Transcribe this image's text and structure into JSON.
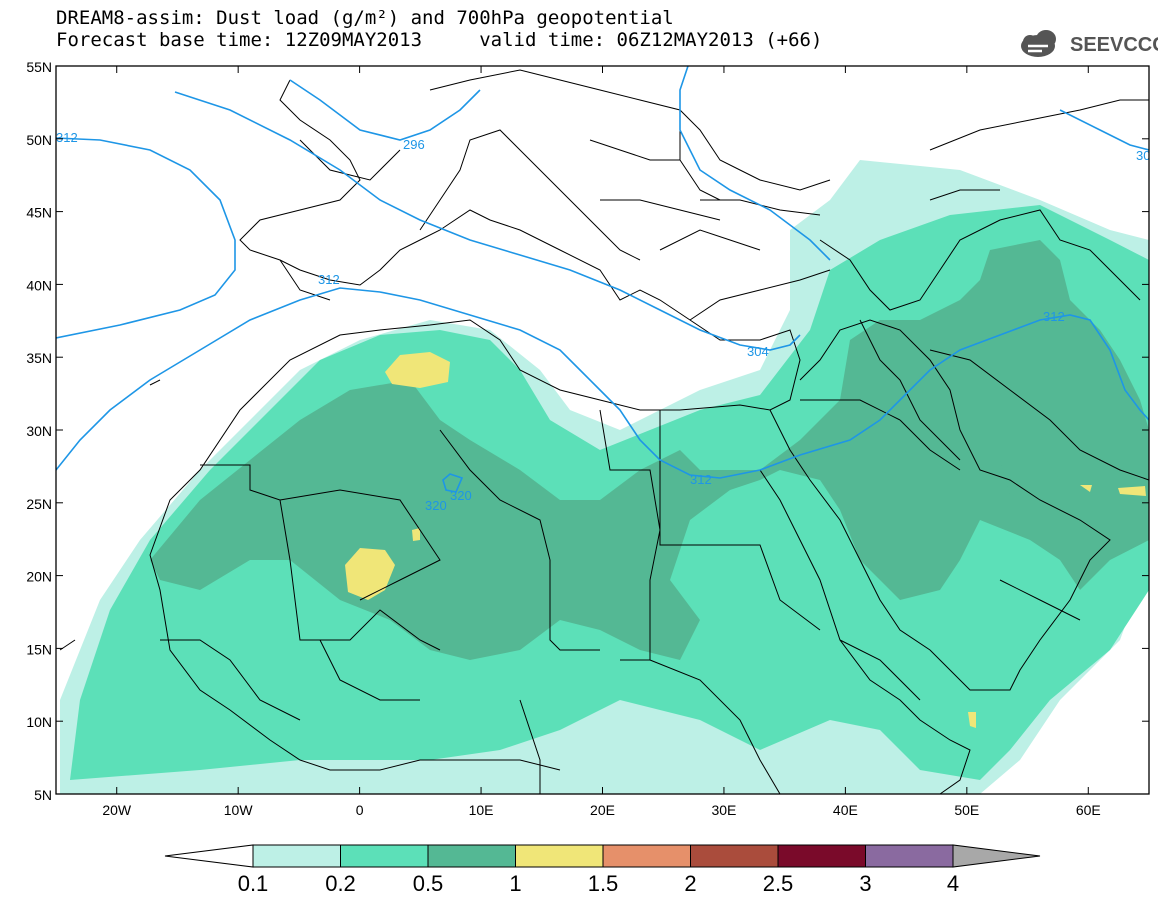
{
  "header": {
    "line1": "DREAM8-assim: Dust load (g/m²) and 700hPa geopotential",
    "line2": "Forecast base time: 12Z09MAY2013     valid time: 06Z12MAY2013 (+66)",
    "logo_text": "SEEVCCC"
  },
  "map": {
    "lon_range": [
      -25,
      65
    ],
    "lat_range": [
      5,
      55
    ],
    "lat_ticks": [
      "55N",
      "50N",
      "45N",
      "40N",
      "35N",
      "30N",
      "25N",
      "20N",
      "15N",
      "10N",
      "5N"
    ],
    "lon_ticks": [
      "20W",
      "10W",
      "0",
      "10E",
      "20E",
      "30E",
      "40E",
      "50E",
      "60E"
    ],
    "contour_labels": [
      "312",
      "296",
      "312",
      "304",
      "312",
      "320",
      "320",
      "312",
      "30"
    ],
    "contour_color": "#1e96e6"
  },
  "colorbar": {
    "labels": [
      "0.1",
      "0.2",
      "0.5",
      "1",
      "1.5",
      "2",
      "2.5",
      "3",
      "4"
    ],
    "colors": [
      "#ffffff",
      "#bdf0e6",
      "#5ce0b8",
      "#54b894",
      "#f0e678",
      "#e6906a",
      "#aa4c3c",
      "#7a0a2a",
      "#8a6aa0",
      "#a8a8a8"
    ]
  },
  "dust_colors": {
    "level_0_1": "#bdf0e6",
    "level_0_2": "#5ce0b8",
    "level_0_5": "#54b894",
    "level_1": "#f0e678"
  }
}
